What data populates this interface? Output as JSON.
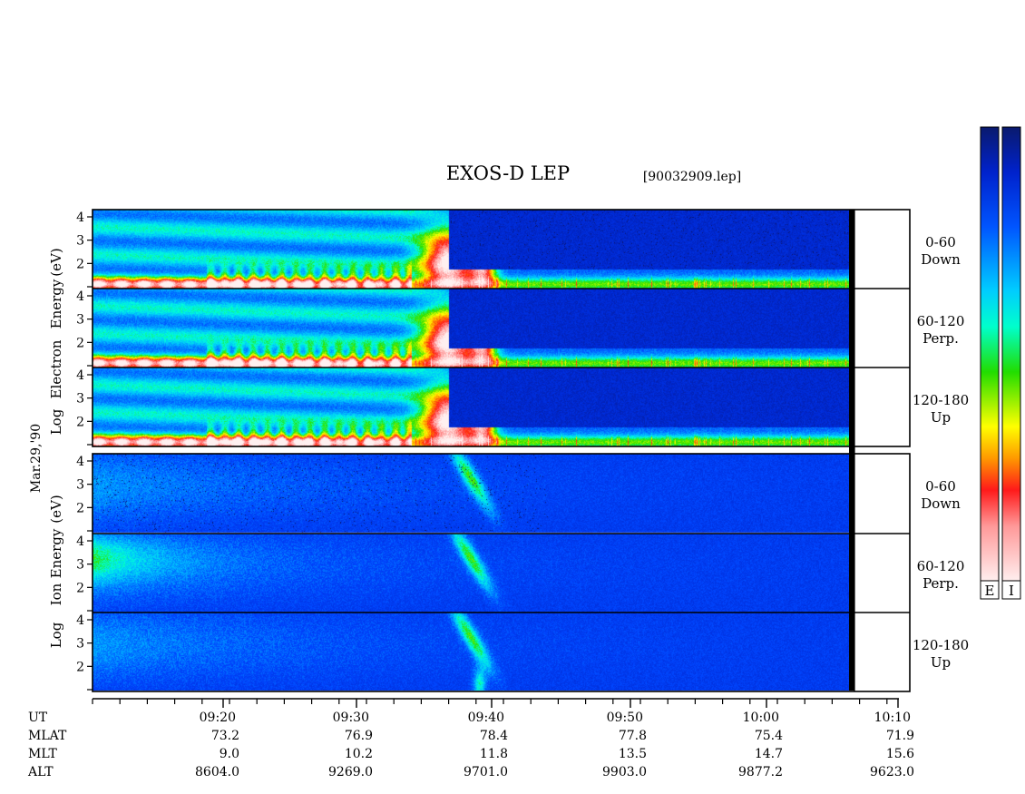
{
  "chart_data": {
    "type": "heatmap",
    "title": "EXOS-D LEP",
    "file_label": "[90032909.lep]",
    "date_label": "Mar.29,'90",
    "time_axis": {
      "label": "UT",
      "ticks": [
        "09:20",
        "09:30",
        "09:40",
        "09:50",
        "10:00",
        "10:10"
      ]
    },
    "ephemeris": [
      {
        "name": "MLAT",
        "values": [
          "73.2",
          "76.9",
          "78.4",
          "77.8",
          "75.4",
          "71.9"
        ]
      },
      {
        "name": "MLT",
        "values": [
          "9.0",
          "10.2",
          "11.8",
          "13.5",
          "14.7",
          "15.6"
        ]
      },
      {
        "name": "ALT",
        "values": [
          "8604.0",
          "9269.0",
          "9701.0",
          "9903.0",
          "9877.2",
          "9623.0"
        ]
      }
    ],
    "energy_ticks": [
      "1",
      "2",
      "3",
      "4"
    ],
    "groups": [
      {
        "species": "electron",
        "ylabel_words": [
          "Log",
          "Electron",
          "Energy",
          "(eV)"
        ],
        "panels": [
          {
            "label_top": "0-60",
            "label_bottom": "Down"
          },
          {
            "label_top": "60-120",
            "label_bottom": "Perp."
          },
          {
            "label_top": "120-180",
            "label_bottom": "Up"
          }
        ]
      },
      {
        "species": "ion",
        "ylabel_words": [
          "Log",
          "Ion",
          "Energy",
          "(eV)"
        ],
        "panels": [
          {
            "label_top": "0-60",
            "label_bottom": "Down"
          },
          {
            "label_top": "60-120",
            "label_bottom": "Perp."
          },
          {
            "label_top": "120-180",
            "label_bottom": "Up"
          }
        ]
      }
    ],
    "colorbars": [
      {
        "label": "E"
      },
      {
        "label": "I"
      }
    ],
    "colorscale": [
      "#0a1a6e",
      "#0033ff",
      "#00aaff",
      "#00ffff",
      "#00ff66",
      "#22cc00",
      "#ffff00",
      "#ff9900",
      "#ff2200",
      "#ff8080",
      "#ffe6e6"
    ]
  }
}
